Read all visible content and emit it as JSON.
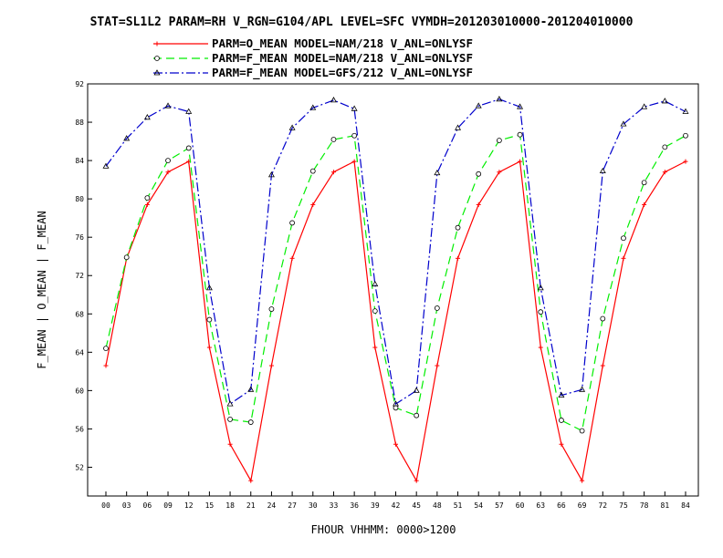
{
  "chart_data": {
    "type": "line",
    "title": "STAT=SL1L2 PARAM=RH V_RGN=G104/APL LEVEL=SFC VYMDH=201203010000-201204010000",
    "xlabel": "FHOUR VHHMM: 0000>1200",
    "ylabel": "F_MEAN | O_MEAN | F_MEAN",
    "categories": [
      "00",
      "03",
      "06",
      "09",
      "12",
      "15",
      "18",
      "21",
      "24",
      "27",
      "30",
      "33",
      "36",
      "39",
      "42",
      "45",
      "48",
      "51",
      "54",
      "57",
      "60",
      "63",
      "66",
      "69",
      "72",
      "75",
      "78",
      "81",
      "84"
    ],
    "yticks": [
      52,
      56,
      60,
      64,
      68,
      72,
      76,
      80,
      84,
      88,
      92
    ],
    "ylim": [
      49,
      92
    ],
    "grid": false,
    "legend_position": "top",
    "series": [
      {
        "name": "PARM=O_MEAN MODEL=NAM/218 V_ANL=ONLYSF",
        "color": "#ff0000",
        "dash": "",
        "marker": "plus",
        "values": [
          62.6,
          73.8,
          79.4,
          82.8,
          83.9,
          64.5,
          54.4,
          50.6,
          62.6,
          73.8,
          79.4,
          82.8,
          83.9,
          64.5,
          54.4,
          50.6,
          62.6,
          73.8,
          79.4,
          82.8,
          83.9,
          64.5,
          54.4,
          50.6,
          62.6,
          73.8,
          79.4,
          82.8,
          83.9
        ]
      },
      {
        "name": "PARM=F_MEAN MODEL=NAM/218 V_ANL=ONLYSF",
        "color": "#00ee00",
        "dash": "9,5",
        "marker": "circle",
        "values": [
          64.4,
          73.9,
          80.1,
          84.0,
          85.3,
          67.4,
          57.0,
          56.7,
          68.5,
          77.5,
          82.9,
          86.2,
          86.6,
          68.3,
          58.2,
          57.4,
          68.6,
          77.0,
          82.6,
          86.1,
          86.7,
          68.2,
          56.9,
          55.8,
          67.5,
          75.9,
          81.7,
          85.4,
          86.6
        ]
      },
      {
        "name": "PARM=F_MEAN MODEL=GFS/212 V_ANL=ONLYSF",
        "color": "#0000cc",
        "dash": "10,3,2,3",
        "marker": "triangle",
        "values": [
          83.4,
          86.3,
          88.5,
          89.7,
          89.1,
          70.7,
          58.6,
          60.1,
          82.5,
          87.4,
          89.5,
          90.3,
          89.4,
          71.1,
          58.6,
          60.0,
          82.7,
          87.4,
          89.7,
          90.4,
          89.6,
          70.7,
          59.5,
          60.1,
          82.9,
          87.8,
          89.6,
          90.2,
          89.1
        ]
      }
    ]
  }
}
